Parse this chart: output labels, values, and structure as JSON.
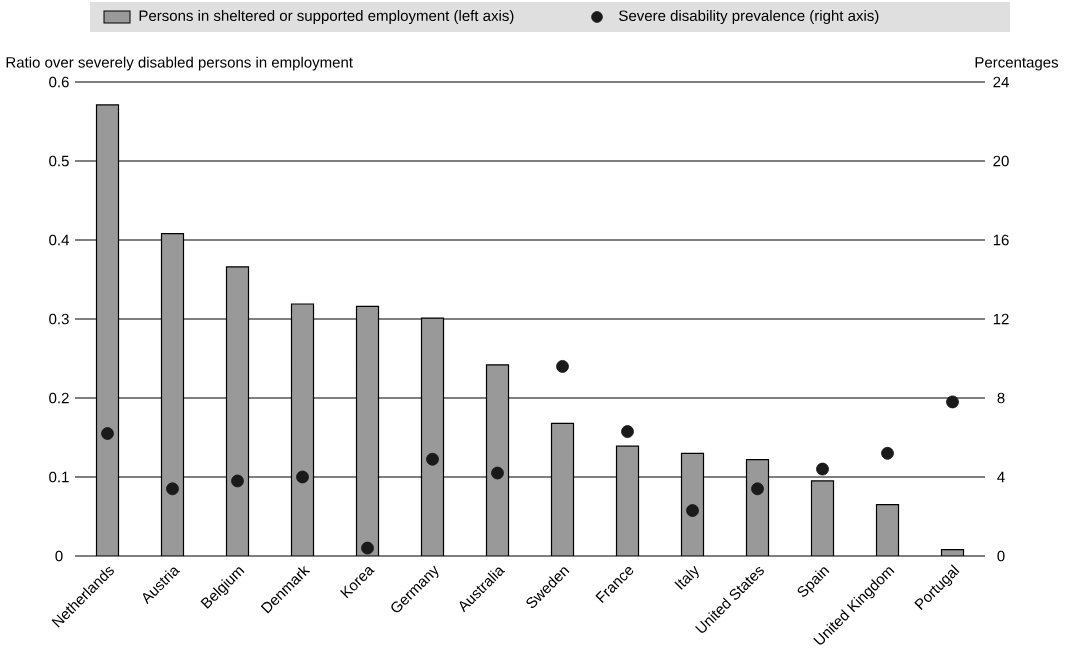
{
  "chart_data": {
    "type": "bar",
    "ylabel": "Ratio over severely disabled persons in employment",
    "y2label": "Percentages",
    "categories": [
      "Netherlands",
      "Austria",
      "Belgium",
      "Denmark",
      "Korea",
      "Germany",
      "Australia",
      "Sweden",
      "France",
      "Italy",
      "United States",
      "Spain",
      "United Kingdom",
      "Portugal"
    ],
    "series": [
      {
        "name": "Persons in sheltered or supported employment (left axis)",
        "color": "#999999",
        "values": [
          0.571,
          0.408,
          0.366,
          0.319,
          0.316,
          0.301,
          0.242,
          0.168,
          0.139,
          0.13,
          0.122,
          0.095,
          0.065,
          0.008
        ]
      },
      {
        "name": "Severe disability prevalence (right axis)",
        "type": "scatter",
        "axis": "y2",
        "marker": "circle",
        "color": "#1a1a1a",
        "values": [
          6.2,
          3.4,
          3.8,
          4.0,
          0.4,
          4.9,
          4.2,
          9.6,
          6.3,
          2.3,
          3.4,
          4.4,
          5.2,
          7.8
        ]
      }
    ],
    "ylim": [
      0,
      0.6
    ],
    "yticks": [
      0,
      0.1,
      0.2,
      0.3,
      0.4,
      0.5,
      0.6
    ],
    "y2lim": [
      0,
      24
    ],
    "y2ticks": [
      0,
      4,
      8,
      12,
      16,
      20,
      24
    ],
    "grid": "y",
    "legend": "top"
  }
}
